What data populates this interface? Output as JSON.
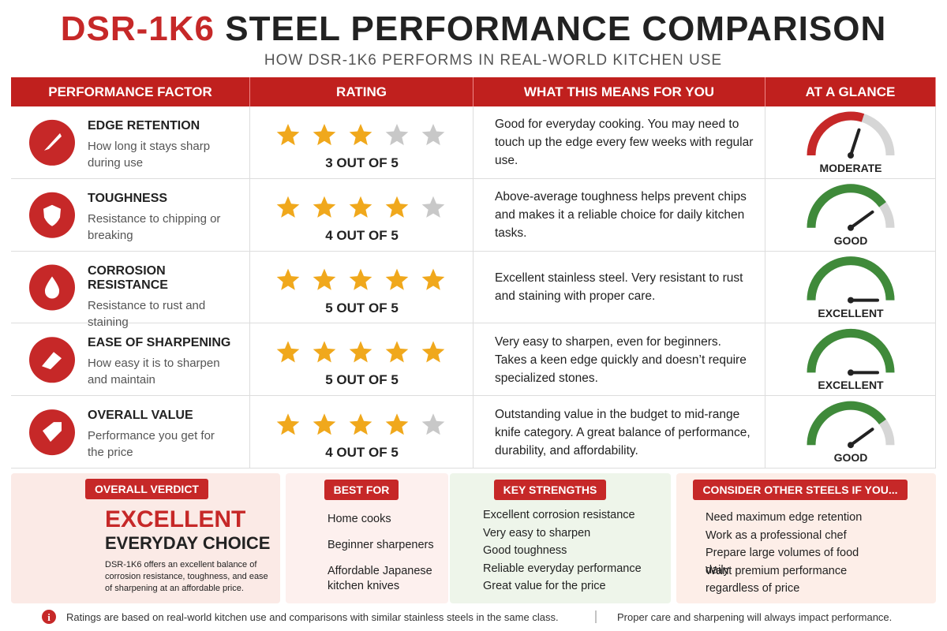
{
  "header": {
    "title_model": "DSR-1K6",
    "title_rest": "STEEL PERFORMANCE COMPARISON",
    "subtitle": "HOW DSR-1K6 PERFORMS IN REAL-WORLD KITCHEN USE"
  },
  "table": {
    "columns": [
      "PERFORMANCE FACTOR",
      "RATING",
      "WHAT THIS MEANS FOR YOU",
      "AT A GLANCE"
    ],
    "rating_max": 5,
    "rows": [
      {
        "factor": "EDGE RETENTION",
        "description": "How long it stays sharp during use",
        "rating": 3,
        "rating_label": "3 OUT OF 5",
        "meaning": "Good for everyday cooking. You may need to touch up the edge every few weeks with regular use.",
        "glance": "MODERATE",
        "color": "#c62828"
      },
      {
        "factor": "TOUGHNESS",
        "description": "Resistance to chipping or breaking",
        "rating": 4,
        "rating_label": "4 OUT OF 5",
        "meaning": "Above-average toughness helps prevent chips and makes it a reliable choice for daily kitchen tasks.",
        "glance": "GOOD",
        "color": "#3f8a3a"
      },
      {
        "factor": "CORROSION RESISTANCE",
        "description": "Resistance to rust and staining",
        "rating": 5,
        "rating_label": "5 OUT OF 5",
        "meaning": "Excellent stainless steel. Very resistant to rust and staining with proper care.",
        "glance": "EXCELLENT",
        "color": "#3f8a3a"
      },
      {
        "factor": "EASE OF SHARPENING",
        "description": "How easy it is to sharpen and maintain",
        "rating": 5,
        "rating_label": "5 OUT OF 5",
        "meaning": "Very easy to sharpen, even for beginners. Takes a keen edge quickly and doesn’t require specialized stones.",
        "glance": "EXCELLENT",
        "color": "#3f8a3a"
      },
      {
        "factor": "OVERALL VALUE",
        "description": "Performance you get for the price",
        "rating": 4,
        "rating_label": "4 OUT OF 5",
        "meaning": "Outstanding value in the budget to mid-range knife category. A great balance of performance, durability, and affordability.",
        "glance": "GOOD",
        "color": "#3f8a3a"
      }
    ]
  },
  "verdict": {
    "label": "OVERALL VERDICT",
    "headline": "EXCELLENT",
    "subhead": "EVERYDAY CHOICE",
    "text": "DSR-1K6 offers an excellent balance of corrosion resistance, toughness, and ease of sharpening at an affordable price."
  },
  "best_for": {
    "label": "BEST FOR",
    "items": [
      "Home cooks",
      "Beginner sharpeners",
      "Affordable Japanese kitchen knives"
    ]
  },
  "key_strengths": {
    "label": "KEY STRENGTHS",
    "items": [
      "Excellent corrosion resistance",
      "Very easy to sharpen",
      "Good toughness",
      "Reliable everyday performance",
      "Great value for the price"
    ]
  },
  "consider": {
    "label": "CONSIDER OTHER STEELS IF YOU...",
    "items": [
      "Need maximum edge retention",
      "Work as a professional chef",
      "Prepare large volumes of food daily",
      "Want premium performance regardless of price"
    ]
  },
  "footer": {
    "note": "Ratings are based on real-world kitchen use and comparisons with similar stainless steels in the same class.",
    "note2": "Proper care and sharpening will always impact performance."
  }
}
